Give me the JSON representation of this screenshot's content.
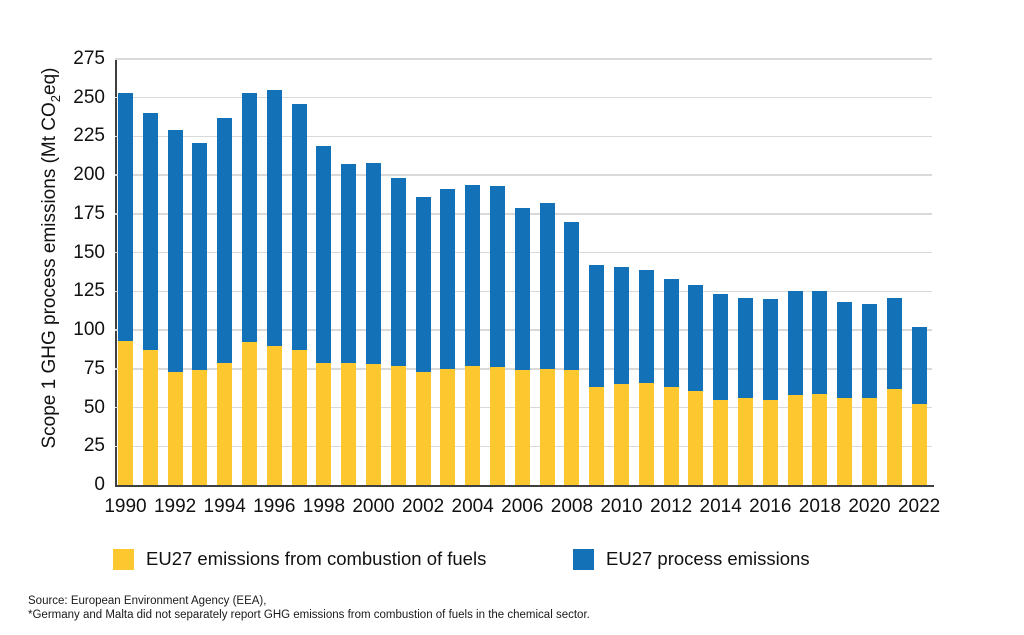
{
  "axis": {
    "y_title_pre": "Scope 1 GHG process emissions (Mt CO",
    "y_title_sub": "2",
    "y_title_suffix": "eq)"
  },
  "chart_data": {
    "type": "bar",
    "stacked": true,
    "categories": [
      "1990",
      "1991",
      "1992",
      "1993",
      "1994",
      "1995",
      "1996",
      "1997",
      "1998",
      "1999",
      "2000",
      "2001",
      "2002",
      "2003",
      "2004",
      "2005",
      "2006",
      "2007",
      "2008",
      "2009",
      "2010",
      "2011",
      "2012",
      "2013",
      "2014",
      "2015",
      "2016",
      "2017",
      "2018",
      "2019",
      "2020",
      "2021",
      "2022"
    ],
    "series": [
      {
        "name": "EU27 emissions from combustion of fuels",
        "color": "#FDC72F",
        "values": [
          93,
          87,
          73,
          74,
          79,
          92,
          90,
          87,
          79,
          79,
          78,
          77,
          73,
          75,
          77,
          76,
          74,
          75,
          74,
          63,
          65,
          66,
          63,
          61,
          55,
          56,
          55,
          58,
          59,
          56,
          56,
          62,
          52
        ]
      },
      {
        "name": "EU27 process emissions",
        "color": "#1271B7",
        "values": [
          160,
          153,
          156,
          147,
          158,
          161,
          165,
          159,
          140,
          128,
          130,
          121,
          113,
          116,
          117,
          117,
          105,
          107,
          96,
          79,
          76,
          73,
          70,
          68,
          68,
          65,
          65,
          67,
          66,
          62,
          61,
          59,
          50
        ]
      }
    ],
    "totals": [
      253,
      240,
      229,
      221,
      237,
      253,
      255,
      246,
      219,
      207,
      208,
      198,
      186,
      191,
      194,
      193,
      179,
      182,
      170,
      142,
      141,
      139,
      133,
      129,
      123,
      121,
      120,
      125,
      125,
      118,
      117,
      121,
      102
    ],
    "ylabel": "Scope 1 GHG process emissions (Mt CO2eq)",
    "ylim": [
      0,
      275
    ],
    "yticks": [
      0,
      25,
      50,
      75,
      100,
      125,
      150,
      175,
      200,
      225,
      250,
      275
    ],
    "xtick_labels": [
      "1990",
      "1992",
      "1994",
      "1996",
      "1998",
      "2000",
      "2002",
      "2004",
      "2006",
      "2008",
      "2010",
      "2012",
      "2014",
      "2016",
      "2018",
      "2020",
      "2022"
    ],
    "grid": "horizontal",
    "legend_position": "bottom"
  },
  "footer": {
    "source_line": "Source: European Environment Agency (EEA),",
    "note_line": "*Germany and Malta did not separately report GHG emissions from combustion of fuels in the chemical sector."
  },
  "colors": {
    "fuels_yellow": "#FDC72F",
    "process_blue": "#1271B7",
    "gridline": "#d9d9d9",
    "axis_line": "#3f3f3f"
  }
}
